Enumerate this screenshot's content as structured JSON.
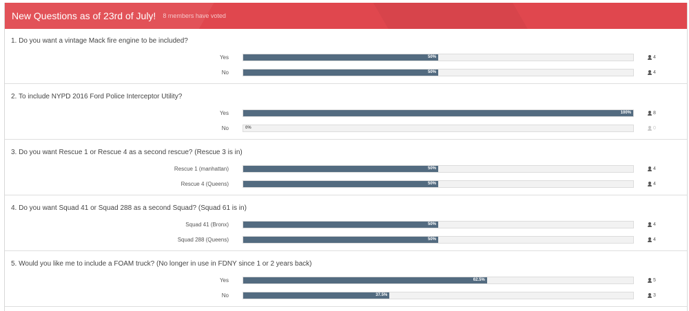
{
  "header": {
    "title": "New Questions as of 23rd of July!",
    "voters": "8 members have voted"
  },
  "questions": [
    {
      "title": "1. Do you want a vintage Mack fire engine to be included?",
      "options": [
        {
          "label": "Yes",
          "percent": 50,
          "percent_text": "50%",
          "votes": "4"
        },
        {
          "label": "No",
          "percent": 50,
          "percent_text": "50%",
          "votes": "4"
        }
      ]
    },
    {
      "title": "2. To include NYPD 2016 Ford Police Interceptor Utility?",
      "options": [
        {
          "label": "Yes",
          "percent": 100,
          "percent_text": "100%",
          "votes": "8"
        },
        {
          "label": "No",
          "percent": 0,
          "percent_text": "0%",
          "votes": "0"
        }
      ]
    },
    {
      "title": "3. Do you want Rescue 1 or Rescue 4 as a second rescue? (Rescue 3 is in)",
      "options": [
        {
          "label": "Rescue 1 (manhattan)",
          "percent": 50,
          "percent_text": "50%",
          "votes": "4"
        },
        {
          "label": "Rescue 4 (Queens)",
          "percent": 50,
          "percent_text": "50%",
          "votes": "4"
        }
      ]
    },
    {
      "title": "4. Do you want Squad 41 or Squad 288 as a second Squad? (Squad 61 is in)",
      "options": [
        {
          "label": "Squad 41 (Bronx)",
          "percent": 50,
          "percent_text": "50%",
          "votes": "4"
        },
        {
          "label": "Squad 288 (Queens)",
          "percent": 50,
          "percent_text": "50%",
          "votes": "4"
        }
      ]
    },
    {
      "title": "5. Would you like me to include a FOAM truck? (No longer in use in FDNY since 1 or 2 years back)",
      "options": [
        {
          "label": "Yes",
          "percent": 62.5,
          "percent_text": "62.5%",
          "votes": "5"
        },
        {
          "label": "No",
          "percent": 37.5,
          "percent_text": "37.5%",
          "votes": "3"
        }
      ]
    }
  ]
}
